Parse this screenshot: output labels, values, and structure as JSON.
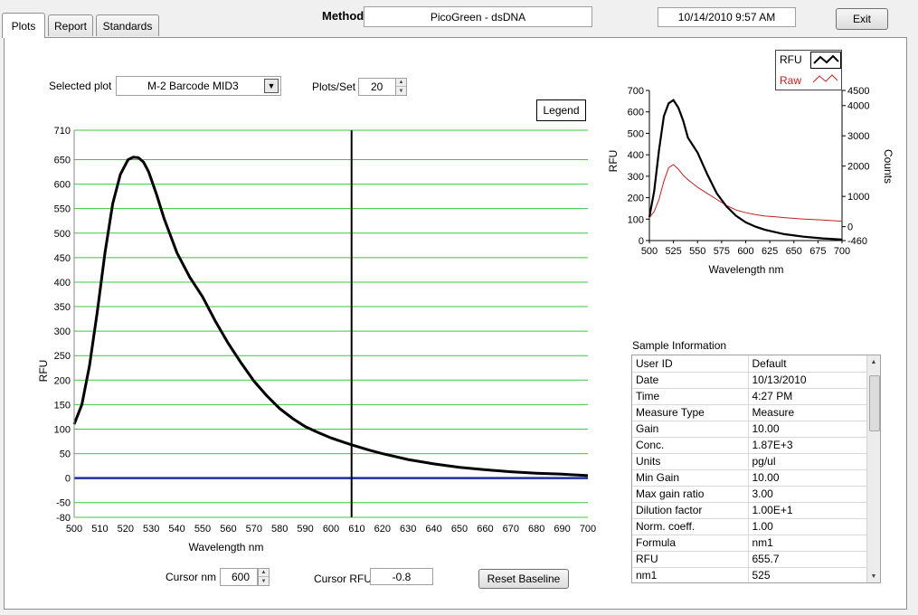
{
  "tabs": [
    {
      "label": "Plots",
      "active": true
    },
    {
      "label": "Report",
      "active": false
    },
    {
      "label": "Standards",
      "active": false
    }
  ],
  "header": {
    "method_label": "Method",
    "method_value": "PicoGreen - dsDNA",
    "datetime": "10/14/2010  9:57 AM",
    "exit_label": "Exit"
  },
  "controls": {
    "selected_plot_label": "Selected plot",
    "selected_plot_value": "M-2 Barcode MID3",
    "plots_per_set_label": "Plots/Set",
    "plots_per_set_value": "20",
    "legend_label": "Legend",
    "cursor_nm_label": "Cursor nm",
    "cursor_nm_value": "600",
    "cursor_rfu_label": "Cursor RFU",
    "cursor_rfu_value": "-0.8",
    "reset_baseline_label": "Reset Baseline"
  },
  "colors": {
    "grid": "#3cc83c",
    "curve": "#000000",
    "baseline": "#1f2f9f",
    "raw": "#c02020"
  },
  "chart_data": [
    {
      "type": "line",
      "xlabel": "Wavelength nm",
      "ylabel": "RFU",
      "xlim": [
        500,
        700
      ],
      "ylim": [
        -80,
        710
      ],
      "x_ticks": [
        500,
        510,
        520,
        530,
        540,
        550,
        560,
        570,
        580,
        590,
        600,
        610,
        620,
        630,
        640,
        650,
        660,
        670,
        680,
        690,
        700
      ],
      "y_ticks": [
        -80,
        -50,
        0,
        50,
        100,
        150,
        200,
        250,
        300,
        350,
        400,
        450,
        500,
        550,
        600,
        650,
        710
      ],
      "grid": true,
      "cursor_x": 608,
      "baseline_y": 0,
      "series": [
        {
          "x": [
            500,
            503,
            506,
            509,
            512,
            515,
            518,
            521,
            523,
            525,
            527,
            529,
            532,
            535,
            540,
            545,
            550,
            555,
            560,
            565,
            570,
            575,
            580,
            585,
            590,
            595,
            600,
            605,
            608,
            615,
            620,
            630,
            640,
            650,
            660,
            670,
            680,
            690,
            700
          ],
          "values": [
            110,
            150,
            230,
            340,
            460,
            560,
            620,
            650,
            655,
            654,
            645,
            625,
            580,
            530,
            460,
            410,
            370,
            320,
            275,
            235,
            198,
            168,
            142,
            122,
            105,
            93,
            82,
            73,
            68,
            57,
            50,
            38,
            29,
            22,
            17,
            13,
            10,
            8,
            5
          ]
        }
      ]
    },
    {
      "type": "line",
      "xlabel": "Wavelength  nm",
      "ylabel": "RFU",
      "y2label": "Counts",
      "xlim": [
        500,
        700
      ],
      "ylim": [
        0,
        700
      ],
      "y2lim": [
        -460,
        4500
      ],
      "x_ticks": [
        500,
        525,
        550,
        575,
        600,
        625,
        650,
        675,
        700
      ],
      "y_ticks": [
        0,
        100,
        200,
        300,
        400,
        500,
        600,
        700
      ],
      "y2_ticks": [
        -460,
        0,
        1000,
        2000,
        3000,
        4000,
        4500
      ],
      "legend": [
        "RFU",
        "Raw"
      ],
      "series": [
        {
          "name": "RFU",
          "x": [
            500,
            505,
            510,
            515,
            520,
            525,
            530,
            535,
            540,
            550,
            560,
            570,
            580,
            590,
            600,
            610,
            620,
            640,
            660,
            680,
            700
          ],
          "values": [
            110,
            230,
            420,
            580,
            640,
            655,
            620,
            560,
            480,
            410,
            310,
            220,
            160,
            115,
            85,
            65,
            50,
            30,
            18,
            10,
            5
          ]
        },
        {
          "name": "Raw",
          "x": [
            500,
            505,
            510,
            515,
            520,
            525,
            530,
            535,
            540,
            550,
            560,
            570,
            580,
            590,
            600,
            610,
            620,
            630,
            640,
            660,
            680,
            700
          ],
          "values": [
            300,
            500,
            900,
            1500,
            1950,
            2050,
            1900,
            1700,
            1550,
            1300,
            1100,
            900,
            700,
            550,
            460,
            400,
            350,
            330,
            300,
            250,
            220,
            180
          ]
        }
      ]
    }
  ],
  "sample_info": {
    "title": "Sample Information",
    "rows": [
      [
        "User ID",
        "Default"
      ],
      [
        "Date",
        "10/13/2010"
      ],
      [
        "Time",
        "4:27 PM"
      ],
      [
        "Measure Type",
        "Measure"
      ],
      [
        "Gain",
        "10.00"
      ],
      [
        "Conc.",
        "1.87E+3"
      ],
      [
        "Units",
        "pg/ul"
      ],
      [
        "Min Gain",
        "10.00"
      ],
      [
        "Max gain ratio",
        "3.00"
      ],
      [
        "Dilution factor",
        "1.00E+1"
      ],
      [
        "Norm. coeff.",
        "1.00"
      ],
      [
        "Formula",
        "nm1"
      ],
      [
        "RFU",
        "655.7"
      ],
      [
        "nm1",
        "525"
      ]
    ]
  }
}
